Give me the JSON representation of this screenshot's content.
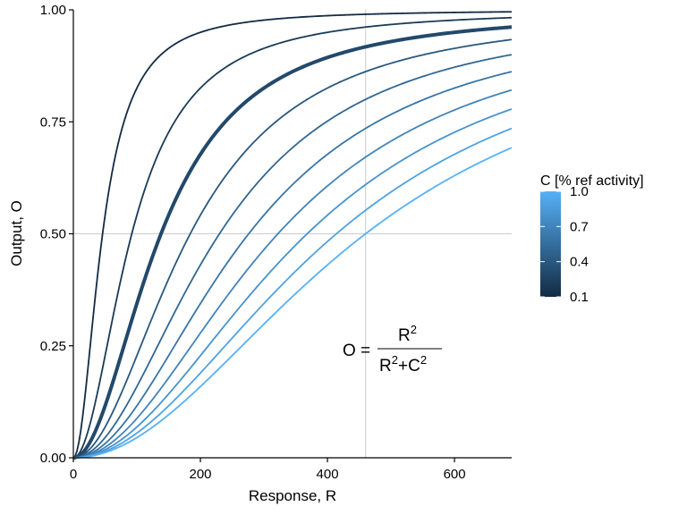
{
  "chart_data": {
    "type": "line",
    "xlabel": "Response, R",
    "ylabel": "Output, O",
    "xlim": [
      0,
      690
    ],
    "ylim": [
      0,
      1
    ],
    "x_ticks": [
      0,
      200,
      400,
      600
    ],
    "x_tick_labels": [
      "0",
      "200",
      "400",
      "600"
    ],
    "y_ticks": [
      0,
      0.25,
      0.5,
      0.75,
      1
    ],
    "y_tick_labels": [
      "0.00",
      "0.25",
      "0.50",
      "0.75",
      "1.00"
    ],
    "grid": false,
    "reference_lines": {
      "x": 460,
      "y": 0.5
    },
    "formula": {
      "lhs": "O",
      "eq": "=",
      "num_base": "R",
      "den_base1": "R",
      "plus": "+",
      "den_base2": "C",
      "exp": "2"
    },
    "curve_model": "O = R^2 / (R^2 + (K*C)^2)",
    "scale_K": 460,
    "highlight_C": 0.3,
    "series_C": [
      0.1,
      0.2,
      0.3,
      0.4,
      0.5,
      0.6,
      0.7,
      0.8,
      0.9,
      1.0
    ],
    "legend": {
      "title": "C [% ref activity]",
      "position": "right",
      "labels": [
        "1.0",
        "0.7",
        "0.4",
        "0.1"
      ],
      "values": [
        1.0,
        0.7,
        0.4,
        0.1
      ],
      "range": [
        0.1,
        1.0
      ]
    },
    "colors": {
      "low": "#132b43",
      "high": "#56b1f7",
      "refline": "#cccccc"
    }
  }
}
